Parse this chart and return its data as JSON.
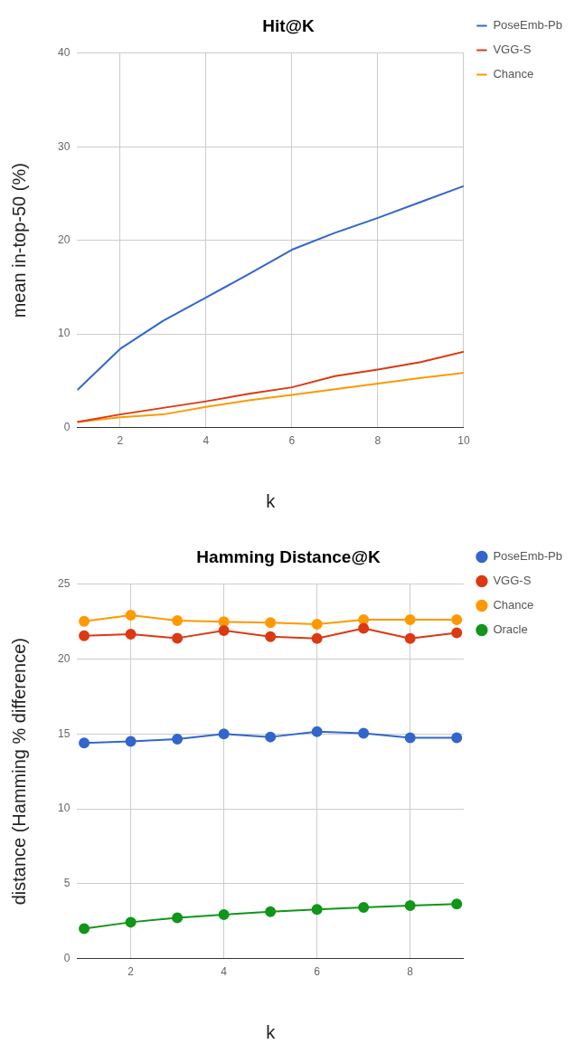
{
  "chart_data": [
    {
      "type": "line",
      "title": "Hit@K",
      "xlabel": "k",
      "ylabel": "mean in-top-50 (%)",
      "x": [
        1,
        2,
        3,
        4,
        5,
        6,
        7,
        8,
        9,
        10
      ],
      "xlim": [
        1,
        10
      ],
      "xticks": [
        2,
        4,
        6,
        8,
        10
      ],
      "ylim": [
        0,
        40
      ],
      "yticks": [
        0,
        10,
        20,
        30,
        40
      ],
      "grid": true,
      "legend": "top right",
      "marker": "none",
      "series": [
        {
          "name": "PoseEmb-Pb",
          "color": "#3366cc",
          "values": [
            4.0,
            8.4,
            11.4,
            13.9,
            16.4,
            19.0,
            20.8,
            22.4,
            24.1,
            25.8
          ]
        },
        {
          "name": "VGG-S",
          "color": "#dc3912",
          "values": [
            0.6,
            1.4,
            2.1,
            2.8,
            3.6,
            4.3,
            5.5,
            6.2,
            7.0,
            8.1
          ]
        },
        {
          "name": "Chance",
          "color": "#ff9900",
          "values": [
            0.6,
            1.1,
            1.4,
            2.2,
            2.9,
            3.5,
            4.1,
            4.7,
            5.3,
            5.85
          ]
        }
      ]
    },
    {
      "type": "line",
      "title": "Hamming Distance@K",
      "xlabel": "k",
      "ylabel": "distance (Hamming % difference)",
      "x": [
        1,
        2,
        3,
        4,
        5,
        6,
        7,
        8,
        9
      ],
      "xlim": [
        0.85,
        9.15
      ],
      "xticks": [
        2,
        4,
        6,
        8
      ],
      "ylim": [
        0,
        25
      ],
      "yticks": [
        0,
        5,
        10,
        15,
        20,
        25
      ],
      "grid": true,
      "legend": "top right",
      "marker": "circle",
      "series": [
        {
          "name": "PoseEmb-Pb",
          "color": "#3366cc",
          "values": [
            14.4,
            14.5,
            14.65,
            15.0,
            14.8,
            15.15,
            15.05,
            14.75,
            14.75
          ]
        },
        {
          "name": "VGG-S",
          "color": "#dc3912",
          "values": [
            21.56,
            21.67,
            21.4,
            21.91,
            21.5,
            21.38,
            22.06,
            21.38,
            21.75
          ]
        },
        {
          "name": "Chance",
          "color": "#ff9900",
          "values": [
            22.53,
            22.94,
            22.57,
            22.49,
            22.43,
            22.33,
            22.63,
            22.63,
            22.63
          ]
        },
        {
          "name": "Oracle",
          "color": "#109618",
          "values": [
            2.0,
            2.43,
            2.73,
            2.94,
            3.13,
            3.29,
            3.42,
            3.54,
            3.64
          ]
        }
      ]
    }
  ]
}
